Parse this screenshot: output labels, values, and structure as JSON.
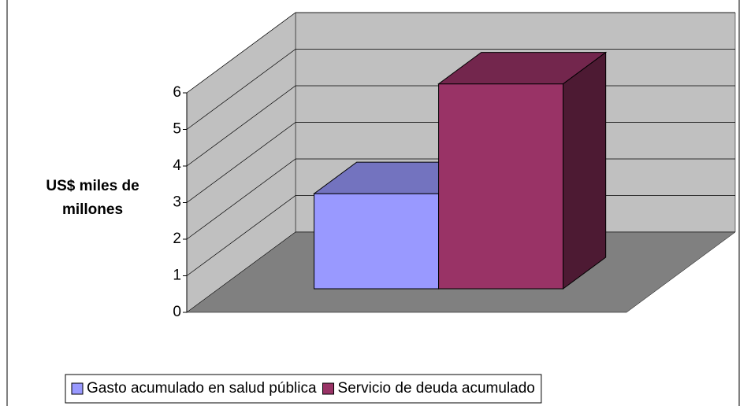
{
  "chart_data": {
    "type": "bar",
    "y_label": "US$ miles de millones",
    "categories": [
      "Gasto acumulado en salud pública",
      "Servicio de deuda acumulado"
    ],
    "values": [
      2.6,
      5.6
    ],
    "colors": [
      "#9999ff",
      "#993366"
    ],
    "ylim": [
      0,
      6
    ],
    "yticks": [
      0,
      1,
      2,
      3,
      4,
      5,
      6
    ],
    "grid": true,
    "legend": "bottom"
  }
}
